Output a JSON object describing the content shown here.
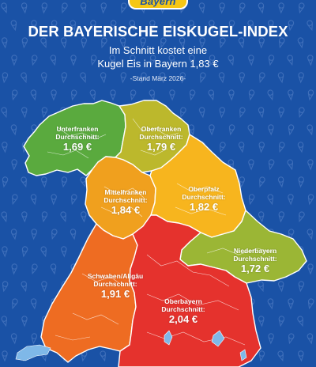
{
  "logo": {
    "text": "Bayern"
  },
  "header": {
    "title": "DER BAYERISCHE EISKUGEL-INDEX",
    "subtitle_line1": "Im Schnitt kostet eine",
    "subtitle_line2": "Kugel Eis in Bayern 1,83 €",
    "stand": "-Stand März 2026-"
  },
  "regions": [
    {
      "id": "unterfranken",
      "name": "Unterfranken",
      "avg_label": "Durchschnitt:",
      "price_text": "1,69 €",
      "price": 1.69,
      "color": "#5aaa3e"
    },
    {
      "id": "oberfranken",
      "name": "Oberfranken",
      "avg_label": "Durchschnitt:",
      "price_text": "1,79 €",
      "price": 1.79,
      "color": "#bcb82c"
    },
    {
      "id": "mittelfranken",
      "name": "Mittelfranken",
      "avg_label": "Durchschnitt:",
      "price_text": "1,84 €",
      "price": 1.84,
      "color": "#f0a01e"
    },
    {
      "id": "oberpfalz",
      "name": "Oberpfalz",
      "avg_label": "Durchschnitt:",
      "price_text": "1,82 €",
      "price": 1.82,
      "color": "#f7b51e"
    },
    {
      "id": "niederbayern",
      "name": "Niederbayern",
      "avg_label": "Durchschnitt:",
      "price_text": "1,72 €",
      "price": 1.72,
      "color": "#9bb635"
    },
    {
      "id": "schwaben",
      "name": "Schwaben/Allgäu",
      "avg_label": "Durchschnitt:",
      "price_text": "1,91 €",
      "price": 1.91,
      "color": "#ee6c22"
    },
    {
      "id": "oberbayern",
      "name": "Oberbayern",
      "avg_label": "Durchschnitt:",
      "price_text": "2,04 €",
      "price": 2.04,
      "color": "#e5322d"
    }
  ],
  "colors": {
    "background": "#1a52a6",
    "logo": "#f6c715",
    "lake": "#7fb8e8"
  },
  "icons": [
    "ice-cream-icon",
    "lake-icon"
  ]
}
